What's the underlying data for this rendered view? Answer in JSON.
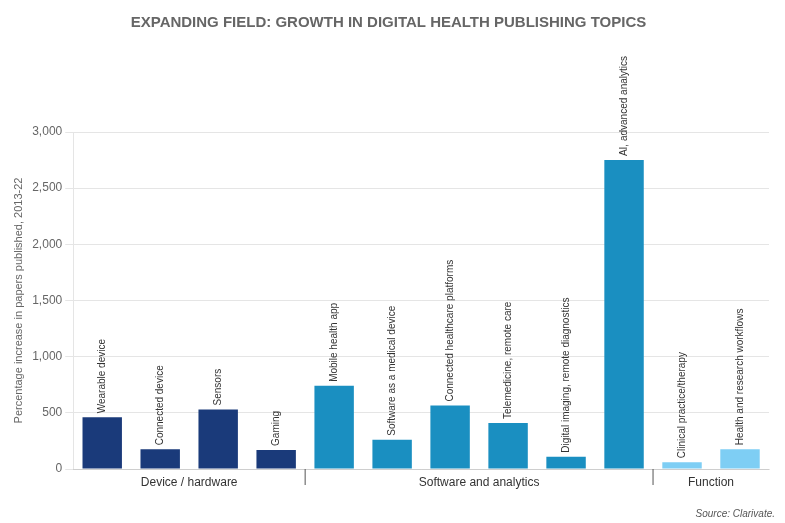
{
  "chart_data": {
    "type": "bar",
    "title": "EXPANDING FIELD: GROWTH IN DIGITAL HEALTH PUBLISHING TOPICS",
    "ylabel": "Percentage increase in papers published, 2013-22",
    "categories": [
      "Wearable device",
      "Connected device",
      "Sensors",
      "Gaming",
      "Mobile health app",
      "Software as a medical device",
      "Connected healthcare platforms",
      "Telemedicine, remote care",
      "Digital imaging, remote diagnostics",
      "AI, advanced analytics",
      "Clinical practice/therapy",
      "Health and research workflows"
    ],
    "values": [
      460,
      175,
      530,
      170,
      740,
      260,
      565,
      410,
      110,
      2750,
      60,
      175
    ],
    "colors": [
      "#1a3a7a",
      "#1a3a7a",
      "#1a3a7a",
      "#1a3a7a",
      "#1a8fc1",
      "#1a8fc1",
      "#1a8fc1",
      "#1a8fc1",
      "#1a8fc1",
      "#1a8fc1",
      "#7ecef4",
      "#7ecef4"
    ],
    "annotations": [
      "Device / hardware",
      "Software and analytics",
      "Function",
      "Source: Clarivate."
    ],
    "ylim": [
      0,
      3000
    ],
    "yticks": [
      0,
      500,
      {
        "value": 1000,
        "label": "1,000"
      },
      {
        "value": 1500,
        "label": "1,500"
      },
      {
        "value": 2000,
        "label": "2,000"
      },
      {
        "value": 2500,
        "label": "2,500"
      },
      {
        "value": 3000,
        "label": "3,000"
      }
    ],
    "grid": true
  }
}
